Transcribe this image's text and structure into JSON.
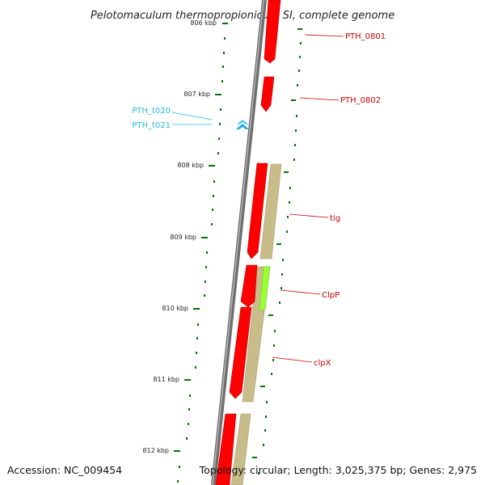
{
  "title": "Pelotomaculum thermopropionicum SI, complete genome",
  "accession": "Accession: NC_009454",
  "topology": "Topology: circular; Length: 3,025,375 bp; Genes: 2,975",
  "colors": {
    "cds": "#ff0000",
    "trna": "#33ccff",
    "gene_bar": "#c8bd8a",
    "highlight": "#99ff33",
    "backbone": "#808080",
    "tick": "#007700",
    "label_cds": "#cc0000",
    "label_trna": "#22bbee"
  },
  "kbp_labels": [
    "806 kbp",
    "807 kbp",
    "808 kbp",
    "809 kbp",
    "810 kbp",
    "811 kbp",
    "812 kbp"
  ],
  "features": {
    "pth0801": "PTH_0801",
    "pth0802": "PTH_0802",
    "t020": "PTH_t020",
    "t021": "PTH_t021",
    "tig": "tig",
    "clpp": "ClpP",
    "clpx": "clpX"
  }
}
